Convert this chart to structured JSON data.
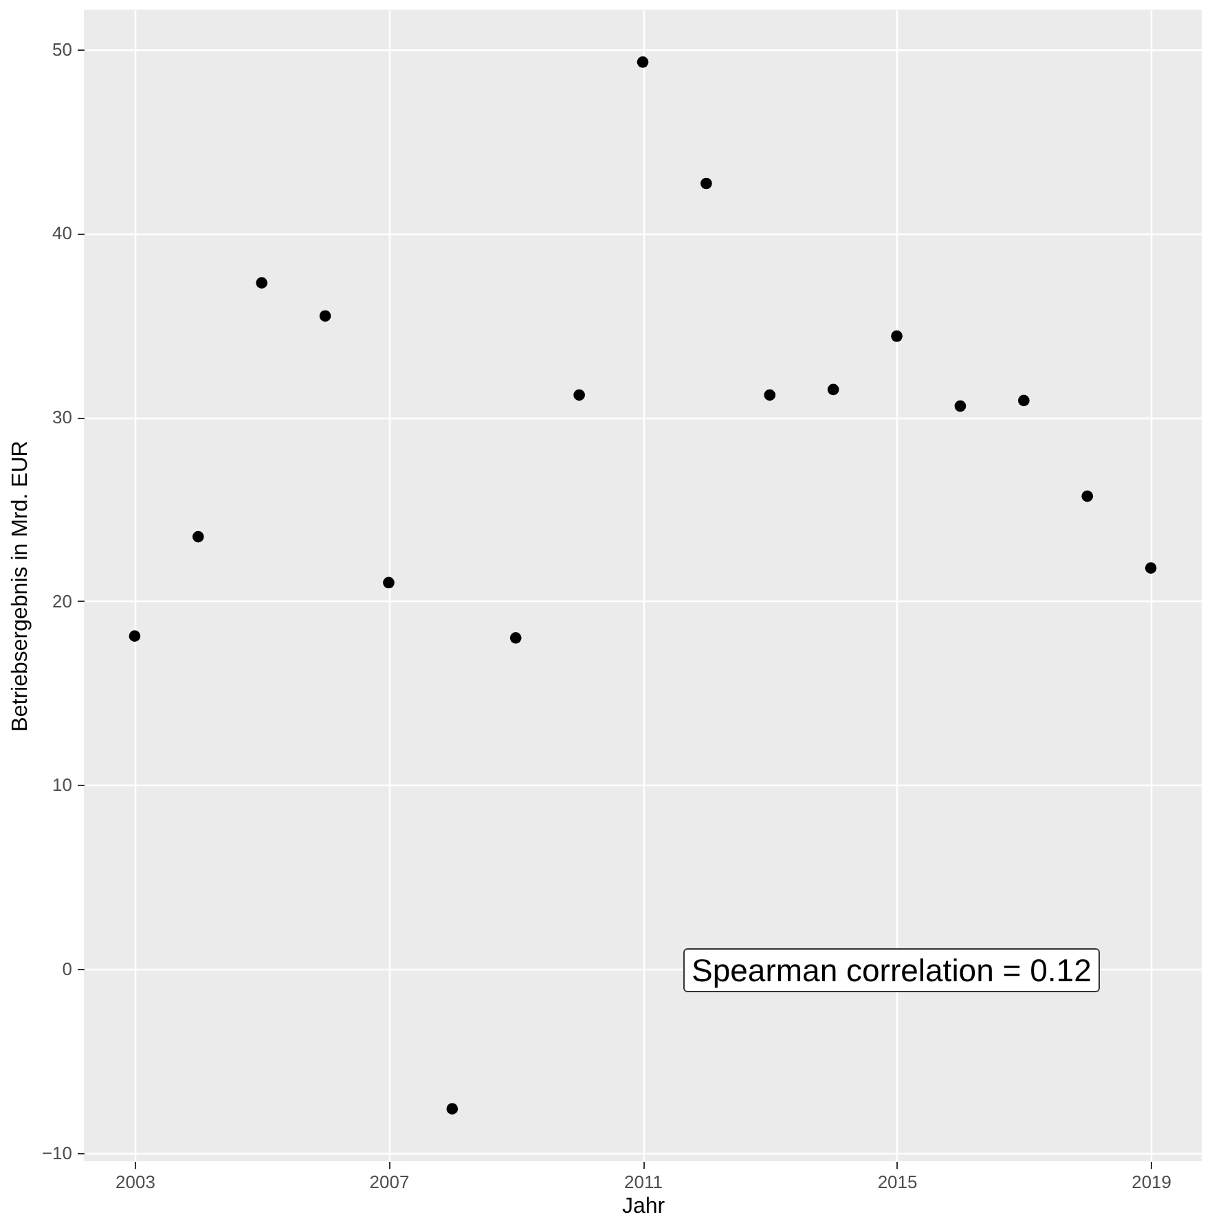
{
  "chart_data": {
    "type": "scatter",
    "xlabel": "Jahr",
    "ylabel": "Betriebsergebnis in Mrd. EUR",
    "x": [
      2003,
      2004,
      2005,
      2006,
      2007,
      2008,
      2009,
      2010,
      2011,
      2012,
      2013,
      2014,
      2015,
      2016,
      2017,
      2018,
      2019
    ],
    "series": [
      {
        "color": "#000000",
        "values": [
          18.1,
          23.5,
          37.3,
          35.5,
          21.0,
          -7.6,
          18.0,
          31.2,
          49.3,
          42.7,
          31.2,
          31.5,
          34.4,
          30.6,
          30.9,
          25.7,
          21.8
        ]
      }
    ],
    "xlim": [
      2002.2,
      2019.8
    ],
    "xticks": [
      2003,
      2007,
      2011,
      2015,
      2019
    ],
    "ylim": [
      -10.45,
      52.15
    ],
    "yticks": [
      -10,
      0,
      10,
      20,
      30,
      40,
      50
    ],
    "grid": true,
    "marker": "circle",
    "annotations": [
      "Spearman correlation = 0.12"
    ]
  }
}
